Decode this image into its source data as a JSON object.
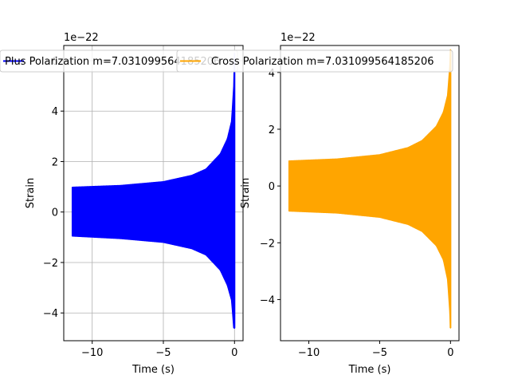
{
  "chart_data": [
    {
      "type": "line",
      "legend": "Plus Polarization m=7.031099564185206",
      "series": [
        {
          "name": "Plus Polarization m=7.031099564185206",
          "color": "#0000ff",
          "envelope_upper": [
            [
              -11.4,
              0.98
            ],
            [
              -8,
              1.05
            ],
            [
              -5,
              1.2
            ],
            [
              -3,
              1.45
            ],
            [
              -2,
              1.7
            ],
            [
              -1,
              2.3
            ],
            [
              -0.5,
              2.9
            ],
            [
              -0.2,
              3.6
            ],
            [
              -0.05,
              5.0
            ],
            [
              0,
              6.3
            ]
          ],
          "envelope_lower": [
            [
              -11.4,
              -0.95
            ],
            [
              -8,
              -1.05
            ],
            [
              -5,
              -1.2
            ],
            [
              -3,
              -1.45
            ],
            [
              -2,
              -1.7
            ],
            [
              -1,
              -2.3
            ],
            [
              -0.5,
              -2.9
            ],
            [
              -0.2,
              -3.5
            ],
            [
              -0.05,
              -4.6
            ],
            [
              0,
              -4.6
            ]
          ]
        }
      ],
      "xlabel": "Time (s)",
      "ylabel": "Strain",
      "offset_text": "1e−22",
      "x_ticks": [
        "−10",
        "−5",
        "0"
      ],
      "x_tick_values": [
        -10,
        -5,
        0
      ],
      "y_ticks": [
        "−4",
        "−2",
        "0",
        "2",
        "4",
        "6"
      ],
      "y_tick_values": [
        -4,
        -2,
        0,
        2,
        4,
        6
      ],
      "xlim": [
        -12,
        0.6
      ],
      "ylim": [
        -5.1,
        6.6
      ],
      "grid": true,
      "legend_position": "top"
    },
    {
      "type": "line",
      "legend": "Cross Polarization m=7.031099564185206",
      "series": [
        {
          "name": "Cross Polarization m=7.031099564185206",
          "color": "#ffa500",
          "envelope_upper": [
            [
              -11.4,
              0.88
            ],
            [
              -8,
              0.95
            ],
            [
              -5,
              1.1
            ],
            [
              -3,
              1.35
            ],
            [
              -2,
              1.6
            ],
            [
              -1,
              2.1
            ],
            [
              -0.5,
              2.6
            ],
            [
              -0.2,
              3.2
            ],
            [
              -0.05,
              4.2
            ],
            [
              0,
              4.8
            ]
          ],
          "envelope_lower": [
            [
              -11.4,
              -0.88
            ],
            [
              -8,
              -0.95
            ],
            [
              -5,
              -1.1
            ],
            [
              -3,
              -1.35
            ],
            [
              -2,
              -1.6
            ],
            [
              -1,
              -2.1
            ],
            [
              -0.5,
              -2.6
            ],
            [
              -0.2,
              -3.3
            ],
            [
              -0.05,
              -4.4
            ],
            [
              0,
              -5.0
            ]
          ]
        }
      ],
      "xlabel": "Time (s)",
      "ylabel": "Strain",
      "offset_text": "1e−22",
      "x_ticks": [
        "−10",
        "−5",
        "0"
      ],
      "x_tick_values": [
        -10,
        -5,
        0
      ],
      "y_ticks": [
        "−4",
        "−2",
        "0",
        "2",
        "4"
      ],
      "y_tick_values": [
        -4,
        -2,
        0,
        2,
        4
      ],
      "xlim": [
        -12.0,
        0.6
      ],
      "ylim": [
        -5.45,
        4.95
      ],
      "grid": false,
      "legend_position": "top"
    }
  ]
}
